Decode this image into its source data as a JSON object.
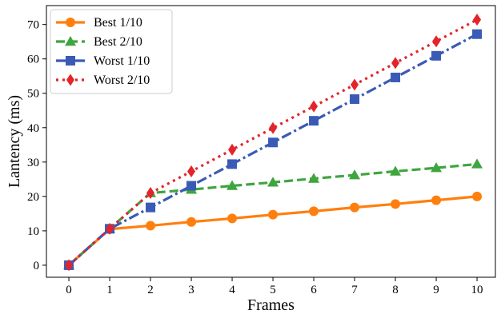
{
  "chart_data": {
    "type": "line",
    "xlabel": "Frames",
    "ylabel": "Lantency (ms)",
    "x": [
      0,
      1,
      2,
      3,
      4,
      5,
      6,
      7,
      8,
      9,
      10
    ],
    "xticks": [
      "0",
      "1",
      "2",
      "3",
      "4",
      "5",
      "6",
      "7",
      "8",
      "9",
      "10"
    ],
    "yticks": [
      "0",
      "10",
      "20",
      "30",
      "40",
      "50",
      "60",
      "70"
    ],
    "xlim": [
      -0.55,
      10.45
    ],
    "ylim": [
      -3.5,
      75.5
    ],
    "grid": false,
    "legend_position": "top-left",
    "series": [
      {
        "name": "Best 1/10",
        "color": "#ff7f0e",
        "marker": "circle",
        "line_style": "solid",
        "values": [
          0,
          10.5,
          11.5,
          12.6,
          13.6,
          14.7,
          15.7,
          16.8,
          17.8,
          18.9,
          20.0
        ]
      },
      {
        "name": "Best 2/10",
        "color": "#3fa53f",
        "marker": "triangle",
        "line_style": "dashed",
        "values": [
          0,
          10.6,
          21.0,
          22.0,
          23.1,
          24.1,
          25.2,
          26.2,
          27.3,
          28.3,
          29.4
        ]
      },
      {
        "name": "Worst 1/10",
        "color": "#3a5bb5",
        "marker": "square",
        "line_style": "dashdot",
        "values": [
          0,
          10.6,
          16.8,
          23.1,
          29.4,
          35.7,
          42.0,
          48.3,
          54.6,
          60.9,
          67.2
        ]
      },
      {
        "name": "Worst 2/10",
        "color": "#e3242b",
        "marker": "diamond",
        "line_style": "dotted",
        "values": [
          0,
          10.6,
          21.0,
          27.3,
          33.6,
          39.9,
          46.2,
          52.5,
          58.8,
          65.1,
          71.4
        ]
      }
    ]
  }
}
